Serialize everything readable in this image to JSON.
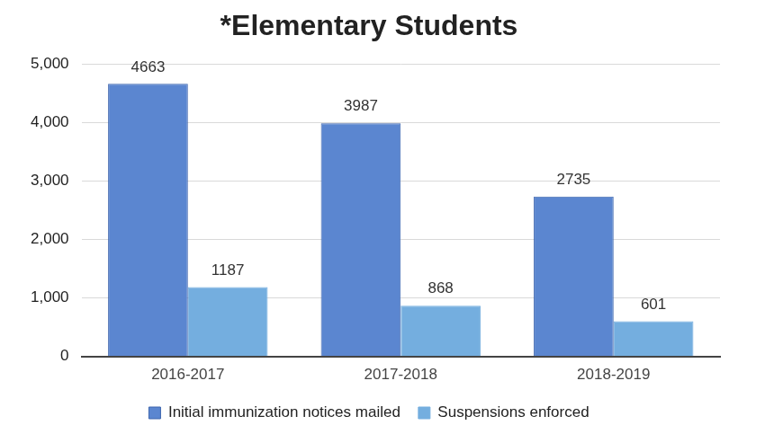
{
  "chart_data": {
    "type": "bar",
    "title": "*Elementary Students",
    "categories": [
      "2016-2017",
      "2017-2018",
      "2018-2019"
    ],
    "series": [
      {
        "name": "Initial immunization notices mailed",
        "color": "#5b86d0",
        "values": [
          4663,
          3987,
          2735
        ]
      },
      {
        "name": "Suspensions enforced",
        "color": "#74aedf",
        "values": [
          1187,
          868,
          601
        ]
      }
    ],
    "ylim": [
      0,
      5000
    ],
    "yticks": [
      0,
      1000,
      2000,
      3000,
      4000,
      5000
    ],
    "grid": true,
    "legend": "bottom",
    "data_labels": true
  }
}
